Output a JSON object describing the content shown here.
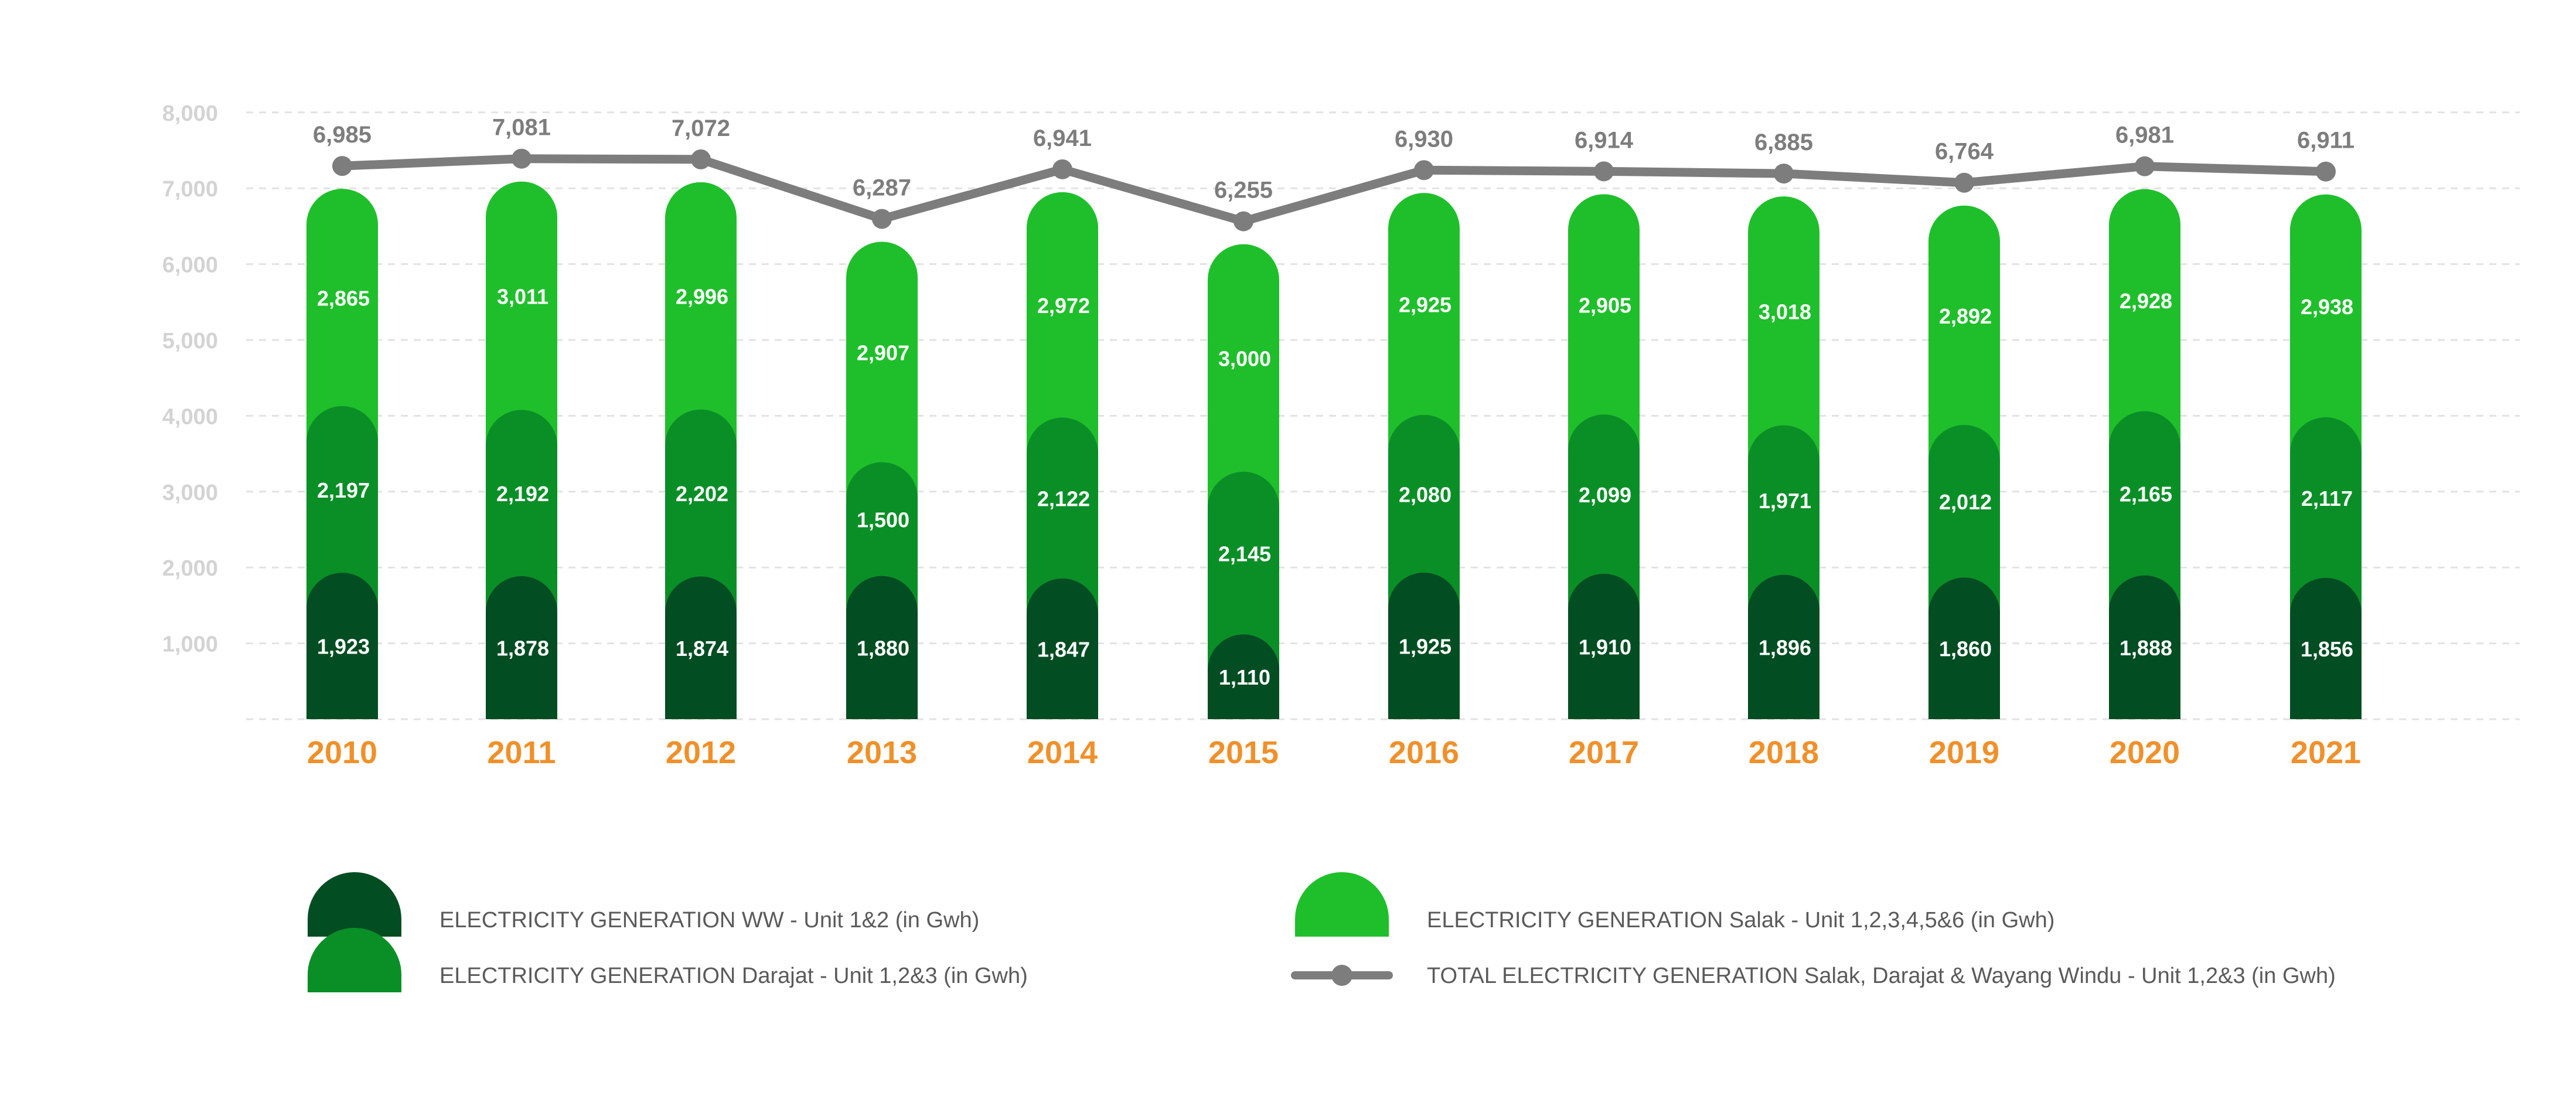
{
  "chart_data": {
    "type": "bar",
    "stacked": true,
    "categories": [
      "2010",
      "2011",
      "2012",
      "2013",
      "2014",
      "2015",
      "2016",
      "2017",
      "2018",
      "2019",
      "2020",
      "2021"
    ],
    "series": [
      {
        "name": "ELECTRICITY GENERATION WW - Unit 1&2 (in Gwh)",
        "color": "#034d22",
        "values": [
          1923,
          1878,
          1874,
          1880,
          1847,
          1110,
          1925,
          1910,
          1896,
          1860,
          1888,
          1856
        ]
      },
      {
        "name": "ELECTRICITY GENERATION Darajat - Unit 1,2&3 (in Gwh)",
        "color": "#0a8f27",
        "values": [
          2197,
          2192,
          2202,
          1500,
          2122,
          2145,
          2080,
          2099,
          1971,
          2012,
          2165,
          2117
        ]
      },
      {
        "name": "ELECTRICITY GENERATION Salak - Unit 1,2,3,4,5&6 (in Gwh)",
        "color": "#1fbf2b",
        "values": [
          2865,
          3011,
          2996,
          2907,
          2972,
          3000,
          2925,
          2905,
          3018,
          2892,
          2928,
          2938
        ]
      }
    ],
    "line": {
      "name": "TOTAL ELECTRICITY GENERATION Salak, Darajat & Wayang Windu - Unit 1,2&3 (in Gwh)",
      "color": "#7d7d7d",
      "values": [
        6985,
        7081,
        7072,
        6287,
        6941,
        6255,
        6930,
        6914,
        6885,
        6764,
        6981,
        6911
      ]
    },
    "ylim": [
      0,
      8000
    ],
    "yticks": [
      "1,000",
      "2,000",
      "3,000",
      "4,000",
      "5,000",
      "6,000",
      "7,000",
      "8,000"
    ],
    "ytick_values": [
      1000,
      2000,
      3000,
      4000,
      5000,
      6000,
      7000,
      8000
    ],
    "grid": true,
    "legend_position": "bottom",
    "title": "",
    "xlabel": "",
    "ylabel": ""
  }
}
